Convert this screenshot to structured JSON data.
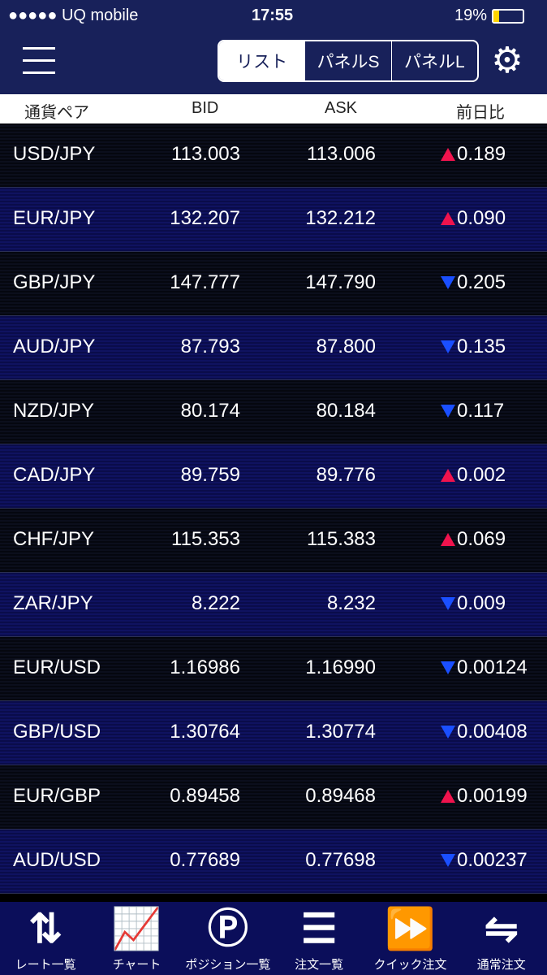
{
  "status": {
    "carrier": "●●●●● UQ mobile",
    "time": "17:55",
    "battery": "19%"
  },
  "nav": {
    "segments": [
      "リスト",
      "パネルS",
      "パネルL"
    ],
    "selected": 0
  },
  "header": {
    "pair": "通貨ペア",
    "bid": "BID",
    "ask": "ASK",
    "change": "前日比"
  },
  "rows": [
    {
      "pair": "USD/JPY",
      "bid": "113.003",
      "ask": "113.006",
      "dir": "up",
      "change": "0.189"
    },
    {
      "pair": "EUR/JPY",
      "bid": "132.207",
      "ask": "132.212",
      "dir": "up",
      "change": "0.090"
    },
    {
      "pair": "GBP/JPY",
      "bid": "147.777",
      "ask": "147.790",
      "dir": "down",
      "change": "0.205"
    },
    {
      "pair": "AUD/JPY",
      "bid": "87.793",
      "ask": "87.800",
      "dir": "down",
      "change": "0.135"
    },
    {
      "pair": "NZD/JPY",
      "bid": "80.174",
      "ask": "80.184",
      "dir": "down",
      "change": "0.117"
    },
    {
      "pair": "CAD/JPY",
      "bid": "89.759",
      "ask": "89.776",
      "dir": "up",
      "change": "0.002"
    },
    {
      "pair": "CHF/JPY",
      "bid": "115.353",
      "ask": "115.383",
      "dir": "up",
      "change": "0.069"
    },
    {
      "pair": "ZAR/JPY",
      "bid": "8.222",
      "ask": "8.232",
      "dir": "down",
      "change": "0.009"
    },
    {
      "pair": "EUR/USD",
      "bid": "1.16986",
      "ask": "1.16990",
      "dir": "down",
      "change": "0.00124"
    },
    {
      "pair": "GBP/USD",
      "bid": "1.30764",
      "ask": "1.30774",
      "dir": "down",
      "change": "0.00408"
    },
    {
      "pair": "EUR/GBP",
      "bid": "0.89458",
      "ask": "0.89468",
      "dir": "up",
      "change": "0.00199"
    },
    {
      "pair": "AUD/USD",
      "bid": "0.77689",
      "ask": "0.77698",
      "dir": "down",
      "change": "0.00237"
    }
  ],
  "tabs": [
    {
      "label": "レート一覧",
      "icon": "⇅"
    },
    {
      "label": "チャート",
      "icon": "📈"
    },
    {
      "label": "ポジション一覧",
      "icon": "Ⓟ"
    },
    {
      "label": "注文一覧",
      "icon": "☰"
    },
    {
      "label": "クイック注文",
      "icon": "⏩"
    },
    {
      "label": "通常注文",
      "icon": "⇋"
    }
  ],
  "colors": {
    "up": "#f0134d",
    "down": "#1a4fff",
    "nav": "#18215a"
  }
}
